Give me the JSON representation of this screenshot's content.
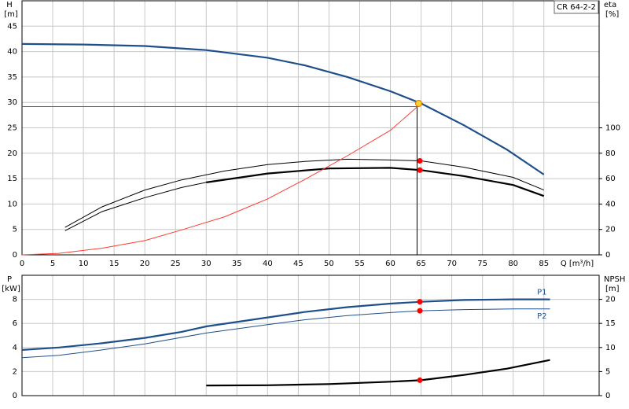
{
  "chart_data": [
    {
      "type": "line",
      "title": "CR 64-2-2",
      "y_label": "H",
      "y_unit": "[m]",
      "y2_label": "eta",
      "y2_unit": "[%]",
      "x_label": "Q [m³/h]",
      "xlim": [
        0,
        94
      ],
      "xticks": [
        0,
        5,
        10,
        15,
        20,
        25,
        30,
        35,
        40,
        45,
        50,
        55,
        60,
        65,
        70,
        75,
        80,
        85
      ],
      "ylim": [
        0,
        50
      ],
      "yticks": [
        0,
        5,
        10,
        15,
        20,
        25,
        30,
        35,
        40,
        45
      ],
      "y2lim": [
        0,
        200
      ],
      "y2ticks": [
        0,
        20,
        40,
        60,
        80,
        100
      ],
      "grid": true,
      "marker_x": 64.8,
      "duty_point": {
        "x": 64.6,
        "y": 29.8
      },
      "series": [
        {
          "color": "#1f4f8a",
          "style": "thick",
          "x": [
            0,
            10,
            20,
            30,
            40,
            46,
            53,
            60,
            65,
            72,
            79,
            85
          ],
          "values": [
            41.5,
            41.4,
            41.1,
            40.3,
            38.8,
            37.3,
            35.0,
            32.2,
            29.8,
            25.5,
            20.7,
            15.8
          ]
        },
        {
          "color": "#000000",
          "style": "thin",
          "axis": "y2",
          "marker": 74,
          "x": [
            7,
            13,
            20,
            26,
            33,
            40,
            46,
            53,
            60,
            65,
            72,
            80,
            85
          ],
          "values": [
            21.6,
            37.7,
            51,
            59,
            66,
            71,
            73.5,
            75.3,
            74.7,
            74,
            69,
            61,
            51
          ]
        },
        {
          "color": "#000000",
          "style": "thin",
          "axis": "y2",
          "x": [
            7,
            13,
            20,
            26,
            30
          ],
          "values": [
            19,
            34,
            45,
            53,
            57
          ]
        },
        {
          "color": "#000000",
          "style": "thick",
          "axis": "y2",
          "marker": 66.7,
          "x": [
            30,
            40,
            50,
            60,
            65,
            72,
            80,
            85
          ],
          "values": [
            57,
            64,
            68,
            68.5,
            66.7,
            62,
            55,
            46.3
          ]
        },
        {
          "color": "#ff3b30",
          "style": "thin",
          "x": [
            0,
            6,
            13,
            20,
            26,
            33,
            40,
            46,
            53,
            60,
            65
          ],
          "values": [
            0,
            0.3,
            1.3,
            2.8,
            4.9,
            7.5,
            11,
            14.8,
            19.5,
            24.5,
            29.8
          ]
        }
      ]
    },
    {
      "type": "line",
      "y_label": "P",
      "y_unit": "[kW]",
      "y2_label": "NPSH",
      "y2_unit": "[m]",
      "xlim": [
        0,
        94
      ],
      "xticks": [
        0,
        5,
        10,
        15,
        20,
        25,
        30,
        35,
        40,
        45,
        50,
        55,
        60,
        65,
        70,
        75,
        80,
        85
      ],
      "ylim": [
        0,
        10
      ],
      "yticks": [
        0,
        2,
        4,
        6,
        8
      ],
      "y2lim": [
        0,
        25
      ],
      "y2ticks": [
        0,
        5,
        10,
        15,
        20
      ],
      "grid": true,
      "marker_x": 64.8,
      "series": [
        {
          "name": "P1",
          "label_pos": "above",
          "color": "#1f4f8a",
          "style": "thick",
          "marker": 7.8,
          "x": [
            0,
            6,
            13,
            20,
            26,
            30,
            40,
            46,
            53,
            60,
            65,
            72,
            80,
            86
          ],
          "values": [
            3.8,
            4.0,
            4.35,
            4.8,
            5.3,
            5.75,
            6.5,
            6.95,
            7.35,
            7.65,
            7.8,
            7.95,
            8.0,
            8.0
          ]
        },
        {
          "name": "P2",
          "label_pos": "below",
          "color": "#1f4f8a",
          "style": "thin",
          "marker": 7.05,
          "x": [
            0,
            6,
            13,
            20,
            30,
            40,
            46,
            53,
            60,
            65,
            72,
            80,
            86
          ],
          "values": [
            3.15,
            3.35,
            3.8,
            4.3,
            5.2,
            5.9,
            6.3,
            6.65,
            6.9,
            7.05,
            7.15,
            7.2,
            7.2
          ]
        },
        {
          "color": "#000000",
          "style": "thick",
          "axis": "y2",
          "marker": 3.2,
          "x": [
            30,
            40,
            50,
            60,
            65,
            72,
            79,
            86
          ],
          "values": [
            2.1,
            2.15,
            2.4,
            2.9,
            3.2,
            4.3,
            5.6,
            7.4
          ]
        }
      ]
    }
  ]
}
